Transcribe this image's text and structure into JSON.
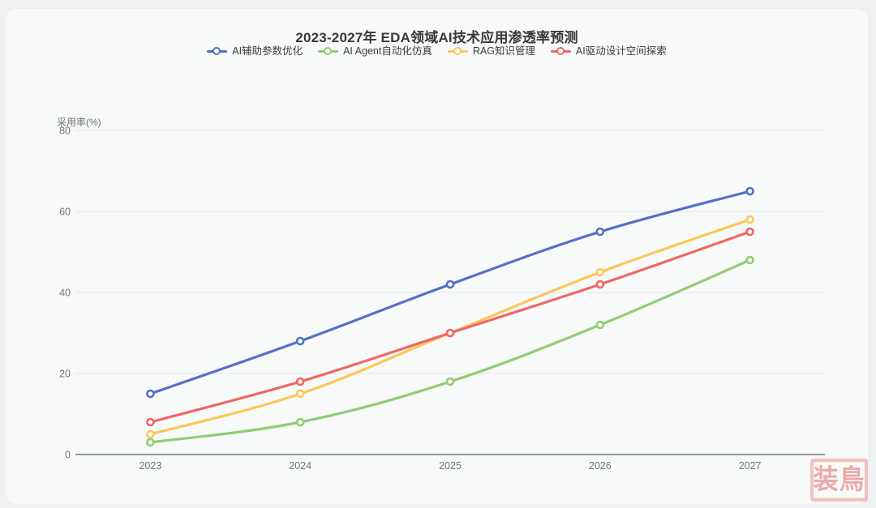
{
  "chart_data": {
    "type": "line",
    "title": "2023-2027年 EDA领域AI技术应用渗透率预测",
    "ylabel": "采用率(%)",
    "xlabel": "",
    "categories": [
      "2023",
      "2024",
      "2025",
      "2026",
      "2027"
    ],
    "ylim": [
      0,
      80
    ],
    "yticks": [
      0,
      20,
      40,
      60,
      80
    ],
    "grid": true,
    "legend_position": "top",
    "smooth": true,
    "series": [
      {
        "name": "AI辅助参数优化",
        "color": "#5470c6",
        "values": [
          15,
          28,
          42,
          55,
          65
        ]
      },
      {
        "name": "AI Agent自动化仿真",
        "color": "#91cc75",
        "values": [
          3,
          8,
          18,
          32,
          48
        ]
      },
      {
        "name": "RAG知识管理",
        "color": "#fac858",
        "values": [
          5,
          15,
          30,
          45,
          58
        ]
      },
      {
        "name": "AI驱动设计空间探索",
        "color": "#ee6666",
        "values": [
          8,
          18,
          30,
          42,
          55
        ]
      }
    ],
    "colors": {
      "grid_line": "#e2e5ee",
      "axis_line": "#8f939b",
      "tick_label": "#6e737b",
      "marker_fill": "#ffffff"
    }
  },
  "watermark": {
    "text": "装鳥"
  }
}
